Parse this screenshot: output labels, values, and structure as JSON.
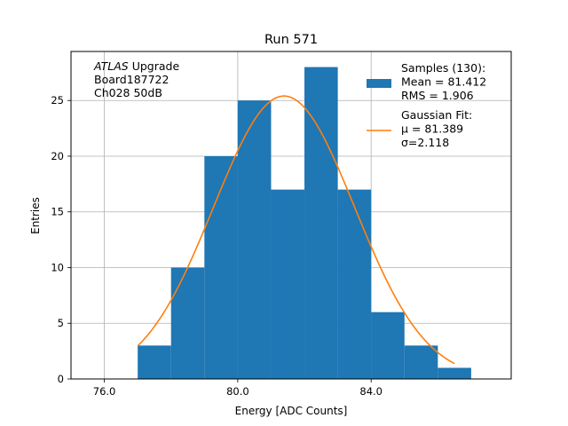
{
  "chart_data": {
    "type": "bar",
    "title": "Run 571",
    "xlabel": "Energy [ADC Counts]",
    "ylabel": "Entries",
    "xlim": [
      75.0,
      88.2
    ],
    "ylim": [
      0,
      29.4
    ],
    "grid": true,
    "x_ticks": [
      76.0,
      80.0,
      84.0
    ],
    "x_tick_labels": [
      "76.0",
      "80.0",
      "84.0"
    ],
    "y_ticks": [
      0,
      5,
      10,
      15,
      20,
      25
    ],
    "y_tick_labels": [
      "0",
      "5",
      "10",
      "15",
      "20",
      "25"
    ],
    "histogram": {
      "bin_edges": [
        77.0,
        78.0,
        79.0,
        80.0,
        81.0,
        82.0,
        83.0,
        84.0,
        85.0,
        86.0,
        87.0
      ],
      "counts": [
        3,
        10,
        20,
        25,
        17,
        28,
        17,
        6,
        3,
        1
      ],
      "color": "#1f77b4"
    },
    "fit": {
      "type": "gaussian",
      "mu": 81.389,
      "sigma": 2.118,
      "amplitude": 25.4,
      "x_range": [
        77.0,
        86.5
      ],
      "color": "#ff7f0e"
    },
    "annotation_lines": [
      {
        "italic": "ATLAS",
        "text": " Upgrade"
      },
      {
        "italic": "",
        "text": " Board187722"
      },
      {
        "italic": "",
        "text": " Ch028 50dB"
      }
    ],
    "legend": {
      "placement": "top-right",
      "entries": [
        {
          "label_lines": [
            "Samples (130):",
            " Mean = 81.412",
            " RMS = 1.906"
          ],
          "marker": "patch",
          "color": "#1f77b4"
        },
        {
          "label_lines": [
            "Gaussian Fit:",
            " μ = 81.389",
            " σ=2.118"
          ],
          "marker": "line",
          "color": "#ff7f0e"
        }
      ]
    }
  }
}
